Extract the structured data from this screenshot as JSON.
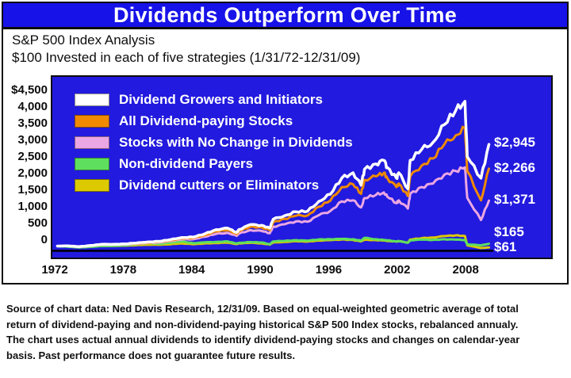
{
  "header": {
    "title": "Dividends Outperform Over Time"
  },
  "subtitle": {
    "line1": "S&P 500 Index Analysis",
    "line2": "$100 Invested in each of five strategies (1/31/72-12/31/09)"
  },
  "footer": {
    "lines": [
      "Source of chart data: Ned Davis Research, 12/31/09. Based on equal-weighted geometric average of total",
      "return of dividend-paying and non-dividend-paying historical S&P 500 Index stocks, rebalanced annualy.",
      "The chart uses actual annual dividends to identify dividend-paying stocks and changes on calendar-year",
      "basis. Past performance does not guarantee future results."
    ]
  },
  "colors": {
    "title_bar_blue": "#1712e8",
    "chart_background_blue": "#221ade",
    "border_black": "#0c0c0c",
    "text_black": "#0d0d0d",
    "label_white": "#ffffff"
  },
  "chart_data": {
    "type": "line",
    "title": "Dividends Outperform Over Time",
    "subtitle": "S&P 500 Index Analysis — $100 Invested in each of five strategies (1/31/72-12/31/09)",
    "xlabel": "",
    "ylabel": "",
    "grid": false,
    "legend_position": "top-left-inside",
    "background": "#221ade",
    "ylim": [
      0,
      4500
    ],
    "xlim": [
      1971.8,
      2015.3
    ],
    "y_tick_labels": [
      "$4,500",
      "4,000",
      "3,500",
      "3,000",
      "2,500",
      "2,000",
      "1,500",
      "1,000",
      "500",
      "0"
    ],
    "x_tick_labels": [
      "1972",
      "1978",
      "1984",
      "1990",
      "1996",
      "2002",
      "2008"
    ],
    "x_tick_years": [
      1972,
      1978,
      1984,
      1990,
      1996,
      2002,
      2008
    ],
    "x": [
      1972.1,
      1973,
      1974,
      1975,
      1976,
      1977,
      1978,
      1979,
      1980,
      1981,
      1982,
      1983,
      1984,
      1985,
      1986,
      1987,
      1987.8,
      1988,
      1989,
      1990,
      1990.7,
      1991,
      1992,
      1993,
      1994,
      1995,
      1996,
      1997,
      1998,
      1998.7,
      1999,
      2000,
      2000.7,
      2001,
      2001.8,
      2002,
      2002.8,
      2003,
      2004,
      2005,
      2006,
      2007,
      2007.8,
      2008,
      2009.2,
      2009.9
    ],
    "series": [
      {
        "name": "Dividend Growers and Initiators",
        "color": "#ffffff",
        "end_label": "$2,945",
        "end_value": 2945,
        "values": [
          100,
          105,
          85,
          115,
          150,
          150,
          160,
          185,
          215,
          230,
          280,
          340,
          350,
          440,
          560,
          600,
          480,
          560,
          700,
          680,
          600,
          850,
          950,
          1060,
          1070,
          1350,
          1550,
          2000,
          2150,
          1800,
          2250,
          2400,
          2500,
          2300,
          2000,
          2150,
          1700,
          2500,
          2800,
          3000,
          3500,
          3900,
          4150,
          2600,
          2000,
          2945
        ]
      },
      {
        "name": "All Dividend-paying Stocks",
        "color": "#f08a00",
        "end_label": "$2,266",
        "end_value": 2266,
        "values": [
          100,
          103,
          80,
          110,
          145,
          145,
          153,
          175,
          200,
          215,
          260,
          315,
          325,
          405,
          510,
          545,
          440,
          515,
          640,
          620,
          545,
          770,
          860,
          950,
          955,
          1200,
          1370,
          1750,
          1830,
          1560,
          1950,
          2050,
          2150,
          2000,
          1750,
          1850,
          1500,
          2050,
          2350,
          2550,
          2950,
          3200,
          3400,
          2200,
          1380,
          2266
        ]
      },
      {
        "name": "Stocks with No Change in Dividends",
        "color": "#eba7e3",
        "end_label": "$1,371",
        "end_value": 1371,
        "values": [
          100,
          100,
          75,
          105,
          138,
          137,
          144,
          163,
          185,
          198,
          238,
          285,
          290,
          360,
          440,
          470,
          385,
          450,
          545,
          520,
          460,
          640,
          710,
          790,
          780,
          965,
          1080,
          1350,
          1380,
          1180,
          1440,
          1530,
          1600,
          1480,
          1300,
          1380,
          1150,
          1560,
          1750,
          1850,
          2100,
          2200,
          2300,
          1450,
          830,
          1371
        ]
      },
      {
        "name": "Non-dividend Payers",
        "color": "#5ee05e",
        "end_label": "$165",
        "end_value": 165,
        "values": [
          100,
          85,
          60,
          80,
          100,
          105,
          120,
          150,
          185,
          165,
          190,
          230,
          180,
          205,
          215,
          230,
          170,
          190,
          210,
          200,
          150,
          230,
          245,
          265,
          250,
          285,
          290,
          300,
          290,
          250,
          330,
          290,
          270,
          260,
          230,
          240,
          190,
          260,
          280,
          270,
          290,
          280,
          270,
          150,
          120,
          165
        ]
      },
      {
        "name": "Dividend cutters or Eliminators",
        "color": "#ddc900",
        "end_label": "$61",
        "end_value": 61,
        "values": [
          100,
          90,
          65,
          85,
          105,
          105,
          110,
          125,
          140,
          135,
          150,
          175,
          150,
          175,
          185,
          195,
          155,
          175,
          190,
          175,
          140,
          200,
          215,
          235,
          225,
          255,
          265,
          285,
          270,
          230,
          280,
          265,
          255,
          245,
          225,
          235,
          200,
          280,
          320,
          340,
          380,
          400,
          380,
          120,
          45,
          61
        ]
      }
    ]
  }
}
